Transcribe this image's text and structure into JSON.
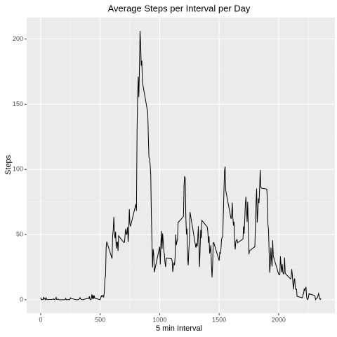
{
  "chart_data": {
    "type": "line",
    "title": "Average Steps per Interval per Day",
    "x_label": "5 min Interval",
    "y_label": "Steps",
    "color": "#000000",
    "grid": true,
    "xlim": [
      -117.75,
      2472.75
    ],
    "xticks": [
      0,
      500,
      1000,
      1500,
      2000
    ],
    "x_minor_ticks": [
      250,
      750,
      1250,
      1750,
      2250
    ],
    "ylim": [
      -10.3,
      216.5
    ],
    "yticks": [
      0,
      50,
      100,
      150,
      200
    ],
    "y_minor_ticks": [
      25,
      75,
      125,
      175
    ],
    "x": [
      0,
      5,
      10,
      15,
      20,
      25,
      30,
      35,
      40,
      45,
      50,
      55,
      100,
      105,
      110,
      115,
      120,
      125,
      130,
      135,
      140,
      145,
      150,
      155,
      200,
      205,
      210,
      215,
      220,
      225,
      230,
      235,
      240,
      245,
      250,
      255,
      300,
      305,
      310,
      315,
      320,
      325,
      330,
      335,
      340,
      345,
      350,
      355,
      400,
      405,
      410,
      415,
      420,
      425,
      430,
      435,
      440,
      445,
      450,
      455,
      500,
      505,
      510,
      515,
      520,
      525,
      530,
      535,
      540,
      545,
      550,
      555,
      600,
      605,
      610,
      615,
      620,
      625,
      630,
      635,
      640,
      645,
      650,
      655,
      700,
      705,
      710,
      715,
      720,
      725,
      730,
      735,
      740,
      745,
      750,
      755,
      800,
      805,
      810,
      815,
      820,
      825,
      830,
      835,
      840,
      845,
      850,
      855,
      900,
      905,
      910,
      915,
      920,
      925,
      930,
      935,
      940,
      945,
      950,
      955,
      1000,
      1005,
      1010,
      1015,
      1020,
      1025,
      1030,
      1035,
      1040,
      1045,
      1050,
      1055,
      1100,
      1105,
      1110,
      1115,
      1120,
      1125,
      1130,
      1135,
      1140,
      1145,
      1150,
      1155,
      1200,
      1205,
      1210,
      1215,
      1220,
      1225,
      1230,
      1235,
      1240,
      1245,
      1250,
      1255,
      1300,
      1305,
      1310,
      1315,
      1320,
      1325,
      1330,
      1335,
      1340,
      1345,
      1350,
      1355,
      1400,
      1405,
      1410,
      1415,
      1420,
      1425,
      1430,
      1435,
      1440,
      1445,
      1450,
      1455,
      1500,
      1505,
      1510,
      1515,
      1520,
      1525,
      1530,
      1535,
      1540,
      1545,
      1550,
      1555,
      1600,
      1605,
      1610,
      1615,
      1620,
      1625,
      1630,
      1635,
      1640,
      1645,
      1650,
      1655,
      1700,
      1705,
      1710,
      1715,
      1720,
      1725,
      1730,
      1735,
      1740,
      1745,
      1750,
      1755,
      1800,
      1805,
      1810,
      1815,
      1820,
      1825,
      1830,
      1835,
      1840,
      1845,
      1850,
      1855,
      1900,
      1905,
      1910,
      1915,
      1920,
      1925,
      1930,
      1935,
      1940,
      1945,
      1950,
      1955,
      2000,
      2005,
      2010,
      2015,
      2020,
      2025,
      2030,
      2035,
      2040,
      2045,
      2050,
      2055,
      2100,
      2105,
      2110,
      2115,
      2120,
      2125,
      2130,
      2135,
      2140,
      2145,
      2150,
      2155,
      2200,
      2205,
      2210,
      2215,
      2220,
      2225,
      2230,
      2235,
      2240,
      2245,
      2250,
      2255,
      2300,
      2305,
      2310,
      2315,
      2320,
      2325,
      2330,
      2335,
      2340,
      2345,
      2350,
      2355
    ],
    "values": [
      1.7,
      0.3,
      0.1,
      0.2,
      0.1,
      2.1,
      0.5,
      0.9,
      0,
      1.5,
      0.3,
      0.1,
      0.3,
      0.7,
      0.2,
      0.3,
      0,
      1.1,
      1.8,
      0.2,
      0.2,
      0.4,
      0.3,
      0,
      0,
      0,
      1.1,
      0,
      0,
      0.1,
      0,
      0.2,
      0,
      0,
      1.5,
      0.9,
      0,
      0,
      0,
      0,
      0.2,
      0.6,
      1.6,
      0.6,
      0.5,
      0.1,
      0,
      0,
      1.2,
      0.9,
      2.6,
      0,
      0.3,
      0.4,
      4.1,
      0.7,
      3.5,
      0.8,
      3.1,
      1.1,
      0,
      1.6,
      3,
      2.2,
      3.3,
      3,
      2.1,
      6.1,
      16,
      18.3,
      39.5,
      44.5,
      31.5,
      49.3,
      53.8,
      63.5,
      50,
      47.1,
      52.2,
      39.3,
      44,
      44.2,
      37.4,
      49,
      43.8,
      44.4,
      50.5,
      54.5,
      49.9,
      51,
      55.7,
      44.3,
      52.3,
      69.5,
      58,
      56.2,
      73.4,
      68.2,
      129.4,
      157.5,
      171.2,
      155.4,
      177.3,
      206.2,
      195.9,
      179.6,
      183.4,
      167,
      143.5,
      124,
      109.1,
      108.1,
      103.7,
      96,
      66.2,
      45.2,
      24.8,
      38.8,
      35,
      21.1,
      40.6,
      27,
      42.4,
      52.7,
      38.9,
      50.8,
      44.3,
      37.4,
      34.7,
      28.3,
      25.1,
      31.9,
      31.4,
      29.7,
      21.3,
      25.5,
      28.4,
      26.5,
      33.4,
      50,
      42,
      44.6,
      46,
      59.2,
      63.9,
      87.7,
      94.8,
      92.8,
      63.4,
      50.2,
      54.5,
      32.4,
      26.5,
      37.7,
      45.1,
      67.3,
      42.3,
      39.9,
      43.3,
      41,
      46.2,
      56.4,
      42.8,
      25.1,
      40,
      53.5,
      47.3,
      60.8,
      55.8,
      52,
      43.6,
      48.7,
      35.5,
      37.5,
      41.8,
      27.5,
      17.1,
      26.1,
      43.6,
      43.8,
      30,
      36.1,
      35.5,
      38.8,
      46,
      47.8,
      48.1,
      65.3,
      82.9,
      98.7,
      102.1,
      84,
      62.1,
      64.1,
      74.5,
      63.2,
      56.9,
      59.8,
      43.9,
      38.6,
      44.7,
      45.5,
      46.2,
      43.7,
      46.6,
      56.3,
      50.7,
      61.2,
      72.7,
      78.9,
      68.9,
      59.7,
      75.1,
      56.5,
      34.8,
      37.5,
      40.7,
      58,
      74.7,
      85.3,
      59.3,
      67.8,
      77.7,
      74.2,
      85.3,
      99.5,
      86.6,
      85.6,
      84.9,
      77.8,
      58,
      53.4,
      36.3,
      20.7,
      27.4,
      40,
      30.2,
      25.5,
      45.7,
      33.5,
      19.6,
      19,
      19.3,
      33.3,
      26.8,
      21.2,
      27.3,
      21.3,
      19.5,
      21.3,
      32.3,
      20.2,
      15.9,
      17.2,
      23.5,
      19.2,
      12.5,
      8,
      14.7,
      16.3,
      8.7,
      7.8,
      8.1,
      2.6,
      1.5,
      3.7,
      4.8,
      8.5,
      7.1,
      8.7,
      9.8,
      2.2,
      0.3,
      0.1,
      1.6,
      4.6,
      3.3,
      2.8,
      0,
      0.8,
      1,
      1.6,
      2.6,
      4.7,
      3.3,
      0.6,
      0.2,
      1.1
    ]
  }
}
